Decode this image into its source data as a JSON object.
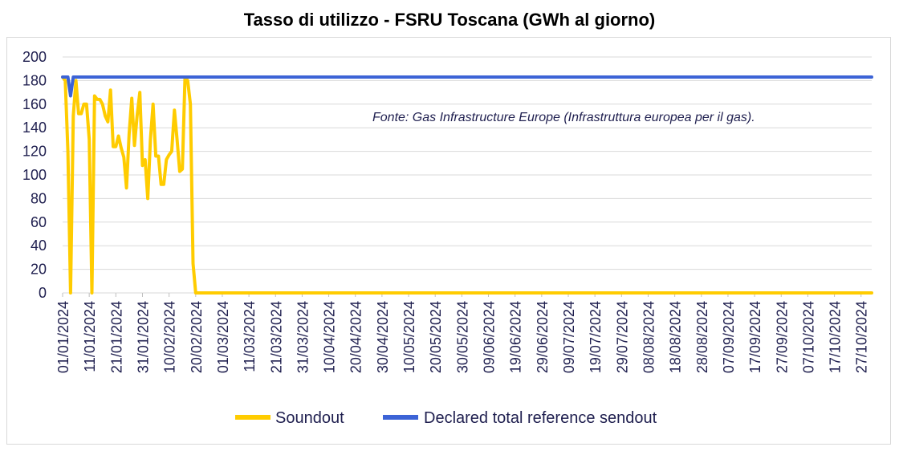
{
  "chart_data": {
    "type": "line",
    "title": "Tasso di utilizzo - FSRU Toscana (GWh al giorno)",
    "annotation": "Fonte: Gas Infrastructure Europe (Infrastruttura europea per il gas).",
    "ylim": [
      0,
      200
    ],
    "yticks": [
      "0",
      "20",
      "40",
      "60",
      "80",
      "100",
      "120",
      "140",
      "160",
      "180",
      "200"
    ],
    "xlim": [
      "01/01/2024",
      "31/10/2024"
    ],
    "xtick_labels": [
      "01/01/2024",
      "11/01/2024",
      "21/01/2024",
      "31/01/2024",
      "10/02/2024",
      "20/02/2024",
      "01/03/2024",
      "11/03/2024",
      "21/03/2024",
      "31/03/2024",
      "10/04/2024",
      "20/04/2024",
      "30/04/2024",
      "10/05/2024",
      "20/05/2024",
      "30/05/2024",
      "09/06/2024",
      "19/06/2024",
      "29/06/2024",
      "09/07/2024",
      "19/07/2024",
      "29/07/2024",
      "08/08/2024",
      "18/08/2024",
      "28/08/2024",
      "07/09/2024",
      "17/09/2024",
      "27/09/2024",
      "07/10/2024",
      "17/10/2024",
      "27/10/2024"
    ],
    "grid": true,
    "legend_position": "bottom",
    "series": [
      {
        "name": "Soundout",
        "color": "#FFCC00",
        "points": [
          [
            "01/01/2024",
            183
          ],
          [
            "02/01/2024",
            180
          ],
          [
            "03/01/2024",
            120
          ],
          [
            "04/01/2024",
            0
          ],
          [
            "05/01/2024",
            150
          ],
          [
            "06/01/2024",
            180
          ],
          [
            "07/01/2024",
            152
          ],
          [
            "08/01/2024",
            152
          ],
          [
            "09/01/2024",
            160
          ],
          [
            "10/01/2024",
            160
          ],
          [
            "11/01/2024",
            130
          ],
          [
            "12/01/2024",
            0
          ],
          [
            "13/01/2024",
            167
          ],
          [
            "14/01/2024",
            164
          ],
          [
            "15/01/2024",
            164
          ],
          [
            "16/01/2024",
            160
          ],
          [
            "17/01/2024",
            150
          ],
          [
            "18/01/2024",
            145
          ],
          [
            "19/01/2024",
            172
          ],
          [
            "20/01/2024",
            124
          ],
          [
            "21/01/2024",
            124
          ],
          [
            "22/01/2024",
            133
          ],
          [
            "23/01/2024",
            123
          ],
          [
            "24/01/2024",
            115
          ],
          [
            "25/01/2024",
            89
          ],
          [
            "26/01/2024",
            135
          ],
          [
            "27/01/2024",
            165
          ],
          [
            "28/01/2024",
            125
          ],
          [
            "29/01/2024",
            150
          ],
          [
            "30/01/2024",
            170
          ],
          [
            "31/01/2024",
            108
          ],
          [
            "01/02/2024",
            113
          ],
          [
            "02/02/2024",
            80
          ],
          [
            "03/02/2024",
            130
          ],
          [
            "04/02/2024",
            160
          ],
          [
            "05/02/2024",
            116
          ],
          [
            "06/02/2024",
            116
          ],
          [
            "07/02/2024",
            92
          ],
          [
            "08/02/2024",
            92
          ],
          [
            "09/02/2024",
            113
          ],
          [
            "10/02/2024",
            117
          ],
          [
            "11/02/2024",
            120
          ],
          [
            "12/02/2024",
            155
          ],
          [
            "13/02/2024",
            130
          ],
          [
            "14/02/2024",
            103
          ],
          [
            "15/02/2024",
            105
          ],
          [
            "16/02/2024",
            183
          ],
          [
            "17/02/2024",
            180
          ],
          [
            "18/02/2024",
            160
          ],
          [
            "19/02/2024",
            25
          ],
          [
            "20/02/2024",
            0
          ],
          [
            "31/10/2024",
            0
          ]
        ]
      },
      {
        "name": "Declared total reference sendout",
        "color": "#3C63D6",
        "points": [
          [
            "01/01/2024",
            183
          ],
          [
            "03/01/2024",
            183
          ],
          [
            "04/01/2024",
            167
          ],
          [
            "05/01/2024",
            183
          ],
          [
            "31/10/2024",
            183
          ]
        ]
      }
    ]
  }
}
